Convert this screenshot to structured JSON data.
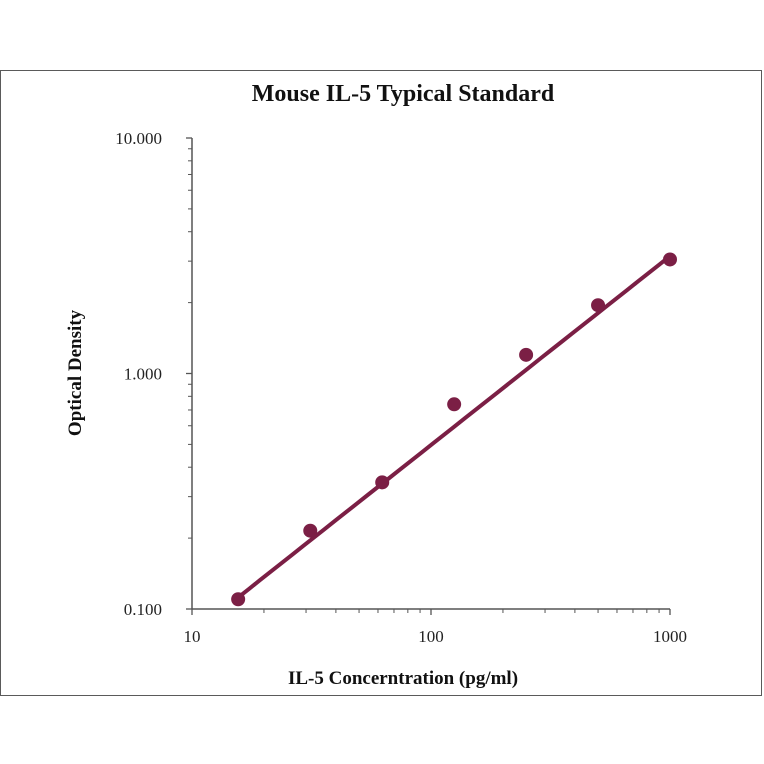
{
  "chart_data": {
    "type": "scatter",
    "title": "Mouse IL-5 Typical Standard",
    "xlabel": "IL-5 Concerntration (pg/ml)",
    "ylabel": "Optical Density",
    "x_scale": "log",
    "y_scale": "log",
    "xlim": [
      10,
      1000
    ],
    "ylim": [
      0.1,
      10
    ],
    "x_ticks": [
      10,
      100,
      1000
    ],
    "x_tick_labels": [
      "10",
      "100",
      "1000"
    ],
    "y_ticks": [
      0.1,
      1,
      10
    ],
    "y_tick_labels": [
      "0.100",
      "1.000",
      "10.000"
    ],
    "grid": false,
    "series": [
      {
        "x": [
          15.6,
          31.25,
          62.5,
          125,
          250,
          500,
          1000
        ],
        "y": [
          0.11,
          0.215,
          0.345,
          0.74,
          1.2,
          1.95,
          3.05
        ]
      }
    ],
    "fit_line": {
      "x": [
        15.6,
        1000
      ],
      "y": [
        0.112,
        3.15
      ]
    },
    "colors": {
      "series": "#7b1f45",
      "axis": "#555555"
    }
  }
}
